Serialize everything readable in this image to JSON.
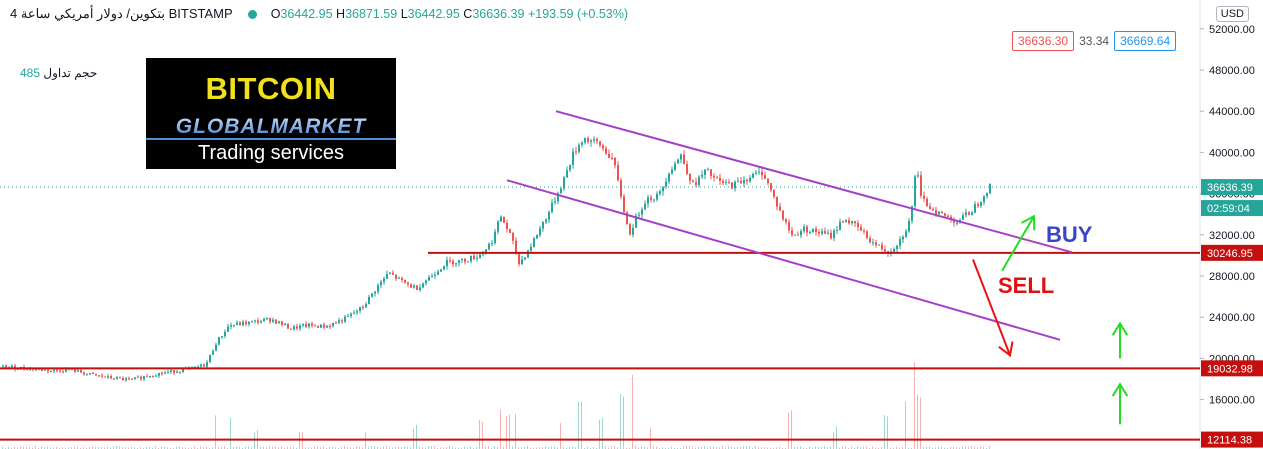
{
  "header": {
    "symbol": "بتكوين/ دولار أمريكي",
    "interval": "ساعة 4",
    "exchange": "BITSTAMP",
    "ohlc": {
      "o_label": "O",
      "o": "36442.95",
      "h_label": "H",
      "h": "36871.59",
      "l_label": "L",
      "l": "36442.95",
      "c_label": "C",
      "c": "36636.39",
      "change": "+193.59 (+0.53%)"
    }
  },
  "volume_legend": {
    "label": "حجم تداول",
    "value": "485"
  },
  "currency_button": "USD",
  "quote": {
    "bid": "36636.30",
    "spread": "33.34",
    "ask": "36669.64"
  },
  "logo": {
    "line1": "BITCOIN",
    "line2": "GLOBALMARKET",
    "line3": "Trading services"
  },
  "annotations": {
    "buy": "BUY",
    "sell": "SELL"
  },
  "colors": {
    "up": "#26a69a",
    "down": "#ef5350",
    "channel": "#a63fc7",
    "level": "#c40f0f",
    "buy_arrow": "#22dd22",
    "sell_arrow": "#ee1111",
    "buy_text": "#3b46c6",
    "sell_text": "#e01010",
    "last_price": "#26a69a"
  },
  "chart_data": {
    "type": "candlestick",
    "ylim": [
      11200,
      54800
    ],
    "y_ticks": [
      16000,
      20000,
      24000,
      28000,
      32000,
      36000,
      40000,
      44000,
      48000,
      52000
    ],
    "y_tick_labels": [
      "16000.00",
      "20000.00",
      "24000.00",
      "28000.00",
      "32000.00",
      "36000.00",
      "40000.00",
      "44000.00",
      "48000.00",
      "52000.00"
    ],
    "price_path": [
      [
        0,
        19200
      ],
      [
        30,
        19000
      ],
      [
        50,
        18800
      ],
      [
        70,
        18900
      ],
      [
        90,
        18400
      ],
      [
        110,
        18100
      ],
      [
        130,
        17900
      ],
      [
        150,
        18400
      ],
      [
        170,
        18700
      ],
      [
        190,
        19000
      ],
      [
        205,
        19400
      ],
      [
        215,
        21500
      ],
      [
        228,
        23200
      ],
      [
        250,
        23500
      ],
      [
        270,
        23800
      ],
      [
        290,
        22900
      ],
      [
        305,
        23200
      ],
      [
        325,
        23100
      ],
      [
        345,
        23900
      ],
      [
        362,
        25000
      ],
      [
        375,
        26800
      ],
      [
        388,
        28300
      ],
      [
        400,
        27500
      ],
      [
        415,
        26800
      ],
      [
        430,
        28000
      ],
      [
        445,
        29300
      ],
      [
        462,
        29500
      ],
      [
        478,
        30000
      ],
      [
        490,
        31200
      ],
      [
        500,
        33800
      ],
      [
        510,
        31800
      ],
      [
        518,
        29200
      ],
      [
        528,
        30600
      ],
      [
        540,
        32800
      ],
      [
        550,
        34600
      ],
      [
        562,
        37200
      ],
      [
        572,
        39800
      ],
      [
        582,
        41400
      ],
      [
        598,
        40800
      ],
      [
        612,
        39300
      ],
      [
        620,
        35800
      ],
      [
        628,
        32000
      ],
      [
        636,
        33800
      ],
      [
        645,
        35500
      ],
      [
        658,
        35800
      ],
      [
        668,
        38200
      ],
      [
        680,
        39700
      ],
      [
        692,
        36800
      ],
      [
        705,
        38200
      ],
      [
        718,
        37100
      ],
      [
        732,
        36800
      ],
      [
        748,
        37600
      ],
      [
        762,
        38100
      ],
      [
        772,
        35800
      ],
      [
        782,
        33600
      ],
      [
        792,
        31800
      ],
      [
        802,
        32600
      ],
      [
        815,
        32300
      ],
      [
        830,
        31900
      ],
      [
        843,
        33600
      ],
      [
        858,
        32600
      ],
      [
        872,
        31200
      ],
      [
        888,
        30300
      ],
      [
        900,
        31600
      ],
      [
        910,
        33600
      ],
      [
        915,
        38900
      ],
      [
        920,
        35500
      ],
      [
        930,
        34600
      ],
      [
        942,
        33900
      ],
      [
        956,
        33300
      ],
      [
        968,
        34100
      ],
      [
        978,
        35200
      ],
      [
        988,
        36636
      ]
    ],
    "volumes": [
      [
        215,
        1
      ],
      [
        230,
        1.1
      ],
      [
        255,
        0.5
      ],
      [
        300,
        0.6
      ],
      [
        365,
        0.5
      ],
      [
        415,
        0.7
      ],
      [
        480,
        0.9
      ],
      [
        500,
        1.4
      ],
      [
        508,
        1.1
      ],
      [
        515,
        1.2
      ],
      [
        560,
        0.8
      ],
      [
        580,
        1.6
      ],
      [
        600,
        0.9
      ],
      [
        622,
        1.8
      ],
      [
        632,
        2.6
      ],
      [
        650,
        0.7
      ],
      [
        790,
        1.2
      ],
      [
        835,
        0.6
      ],
      [
        885,
        1.1
      ],
      [
        905,
        1.5
      ],
      [
        914,
        3.0
      ],
      [
        918,
        1.8
      ]
    ],
    "channel_upper": [
      [
        556,
        44000
      ],
      [
        1072,
        30300
      ]
    ],
    "channel_lower": [
      [
        507,
        37300
      ],
      [
        1060,
        21800
      ]
    ],
    "levels": [
      {
        "value": 30246.95,
        "label": "30246.95",
        "x_start": 428
      },
      {
        "value": 19032.98,
        "label": "19032.98",
        "x_start": 0
      },
      {
        "value": 12114.38,
        "label": "12114.38",
        "x_start": 0
      }
    ],
    "last_price": {
      "value": 36636.39,
      "label": "36636.39",
      "countdown": "02:59:04"
    },
    "buy_arrows": [
      [
        [
          1002,
          28500
        ],
        [
          1034,
          33800
        ]
      ],
      [
        [
          1120,
          20000
        ],
        [
          1120,
          23400
        ]
      ],
      [
        [
          1120,
          13600
        ],
        [
          1120,
          17500
        ]
      ]
    ],
    "sell_arrow": [
      [
        973,
        29600
      ],
      [
        1010,
        20300
      ]
    ]
  }
}
